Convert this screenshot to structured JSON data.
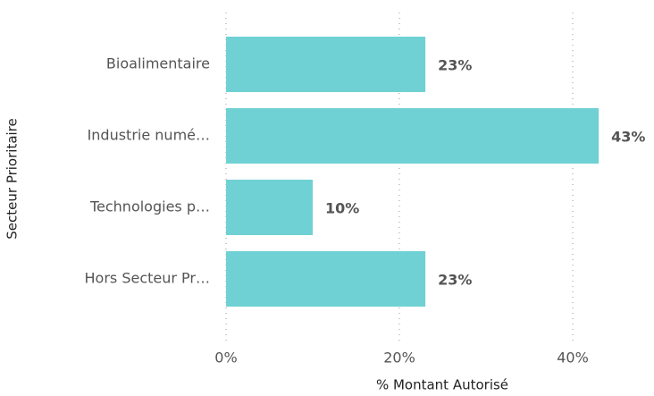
{
  "chart_data": {
    "type": "bar",
    "orientation": "horizontal",
    "x_label": "% Montant Autorisé",
    "y_label": "Secteur Prioritaire",
    "categories": [
      "Bioalimentaire",
      "Industrie numé…",
      "Technologies p…",
      "Hors Secteur Pr…"
    ],
    "values": [
      23,
      43,
      10,
      23
    ],
    "value_labels": [
      "23%",
      "43%",
      "10%",
      "23%"
    ],
    "color": "#6fd1d3",
    "xlim": [
      0,
      48
    ],
    "xticks": [
      {
        "value": 0,
        "label": "0%"
      },
      {
        "value": 20,
        "label": "20%"
      },
      {
        "value": 40,
        "label": "40%"
      }
    ],
    "grid": true
  }
}
